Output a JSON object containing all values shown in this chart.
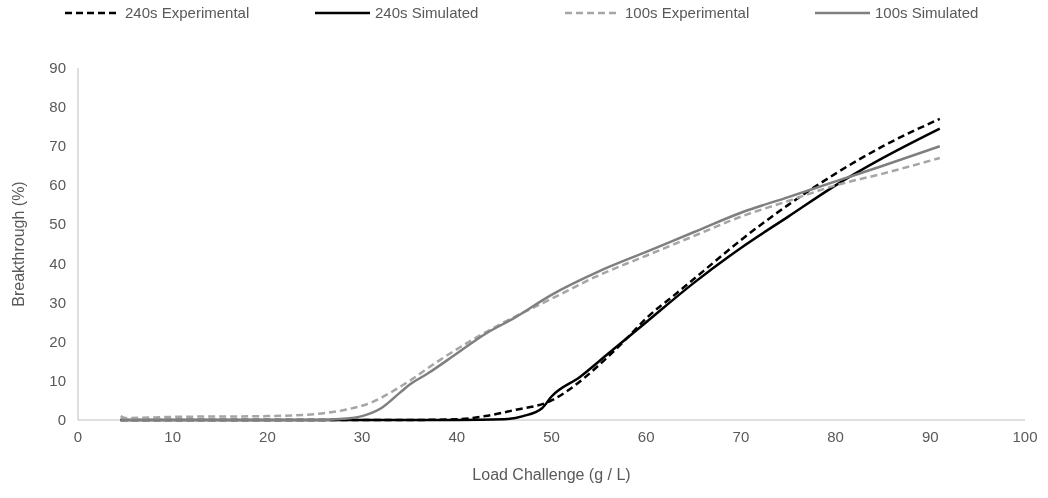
{
  "chart_data": {
    "type": "line",
    "xlabel": "Load Challenge (g / L)",
    "ylabel": "Breakthrough (%)",
    "xlim": [
      0,
      100
    ],
    "xticks": [
      0,
      10,
      20,
      30,
      40,
      50,
      60,
      70,
      80,
      90,
      100
    ],
    "ylim": [
      0,
      90
    ],
    "yticks": [
      0,
      10,
      20,
      30,
      40,
      50,
      60,
      70,
      80,
      90
    ],
    "grid": false,
    "legend": "top",
    "series": [
      {
        "name": "240s Experimental",
        "color": "#000000",
        "line_style": "dashed",
        "x": [
          4.5,
          35,
          40,
          43,
          46,
          50,
          52,
          55,
          58,
          60,
          63,
          66,
          70,
          75,
          80,
          85,
          91
        ],
        "values": [
          0,
          0,
          0.2,
          1,
          2.5,
          5,
          8,
          14,
          21,
          26,
          32,
          38,
          46,
          55,
          63,
          70,
          77
        ]
      },
      {
        "name": "240s Simulated",
        "color": "#000000",
        "line_style": "solid",
        "x": [
          4.5,
          40,
          45,
          47,
          49,
          50,
          53,
          56,
          60,
          65,
          70,
          75,
          80,
          85,
          91
        ],
        "values": [
          0,
          0,
          0.2,
          1,
          3,
          6,
          11,
          17,
          25,
          35,
          44,
          52,
          60,
          67,
          74.5
        ]
      },
      {
        "name": "100s Experimental",
        "color": "#a6a6a6",
        "line_style": "dashed",
        "x": [
          4.5,
          5,
          10,
          20,
          25,
          28,
          31,
          33,
          35,
          38,
          42,
          45,
          50,
          55,
          60,
          65,
          70,
          75,
          80,
          85,
          91
        ],
        "values": [
          1,
          0.5,
          0.8,
          1,
          1.5,
          2.5,
          4.5,
          7,
          10,
          15,
          21,
          25,
          31,
          37,
          42,
          47,
          52,
          56,
          60,
          63,
          67
        ]
      },
      {
        "name": "100s Simulated",
        "color": "#7f7f7f",
        "line_style": "solid",
        "x": [
          4.5,
          25,
          28,
          30,
          32,
          34,
          35,
          37,
          40,
          43,
          46,
          50,
          55,
          60,
          65,
          70,
          75,
          80,
          85,
          91
        ],
        "values": [
          0,
          0,
          0.3,
          1,
          3,
          7,
          9,
          12,
          17,
          22,
          26,
          32,
          38,
          43,
          48,
          53,
          57,
          61,
          65,
          70
        ]
      }
    ]
  }
}
